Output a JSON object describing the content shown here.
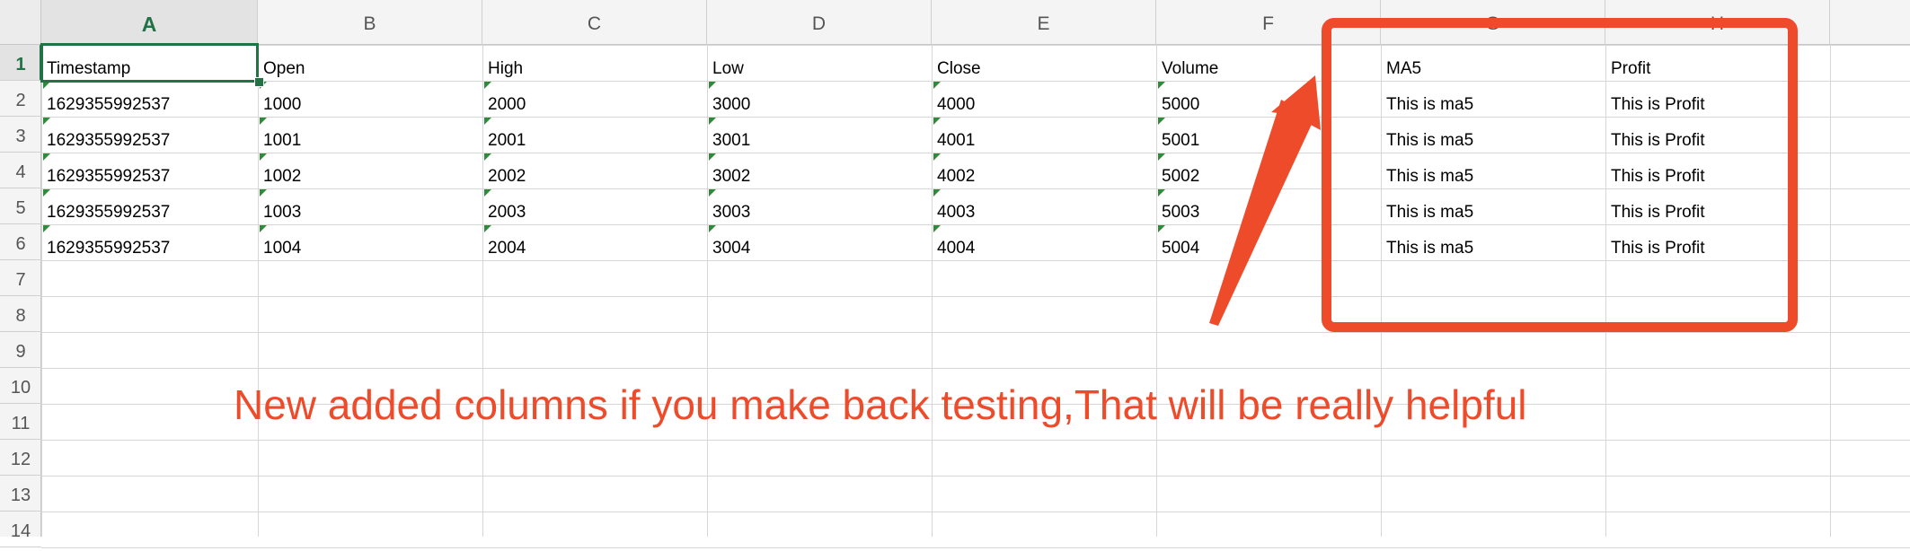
{
  "columns": [
    "A",
    "B",
    "C",
    "D",
    "E",
    "F",
    "G",
    "H"
  ],
  "rows": [
    "1",
    "2",
    "3",
    "4",
    "5",
    "6",
    "7",
    "8",
    "9",
    "10",
    "11",
    "12",
    "13",
    "14"
  ],
  "active_column": "A",
  "active_row": "1",
  "header_row": [
    "Timestamp",
    "Open",
    "High",
    "Low",
    "Close",
    "Volume",
    "MA5",
    "Profit"
  ],
  "data_rows": [
    [
      "1629355992537",
      "1000",
      "2000",
      "3000",
      "4000",
      "5000",
      "This is ma5",
      "This is Profit"
    ],
    [
      "1629355992537",
      "1001",
      "2001",
      "3001",
      "4001",
      "5001",
      "This is ma5",
      "This is Profit"
    ],
    [
      "1629355992537",
      "1002",
      "2002",
      "3002",
      "4002",
      "5002",
      "This is ma5",
      "This is Profit"
    ],
    [
      "1629355992537",
      "1003",
      "2003",
      "3003",
      "4003",
      "5003",
      "This is ma5",
      "This is Profit"
    ],
    [
      "1629355992537",
      "1004",
      "2004",
      "3004",
      "4004",
      "5004",
      "This is ma5",
      "This is Profit"
    ]
  ],
  "annotation": {
    "text": "New added columns if you make back testing,That will be really helpful",
    "color": "#ee4b2b"
  },
  "colors": {
    "accent": "#217346",
    "number_as_text_marker": "#2e8b3a"
  }
}
